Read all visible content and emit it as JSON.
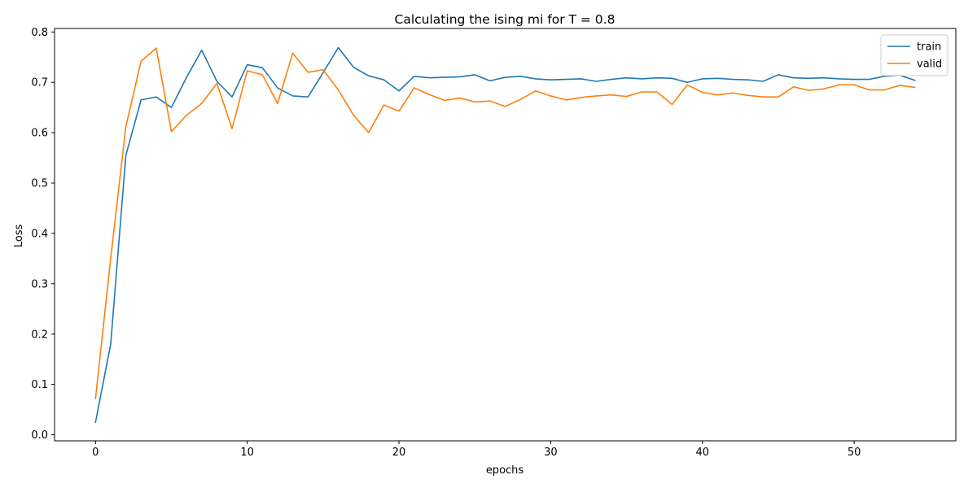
{
  "chart_data": {
    "type": "line",
    "title": "Calculating the ising mi for T = 0.8",
    "xlabel": "epochs",
    "ylabel": "Loss",
    "xlim": [
      -2.7,
      56.7
    ],
    "ylim": [
      -0.012,
      0.807
    ],
    "xticks": [
      0,
      10,
      20,
      30,
      40,
      50
    ],
    "yticks": [
      0.0,
      0.1,
      0.2,
      0.3,
      0.4,
      0.5,
      0.6,
      0.7,
      0.8
    ],
    "ytick_labels": [
      "0.0",
      "0.1",
      "0.2",
      "0.3",
      "0.4",
      "0.5",
      "0.6",
      "0.7",
      "0.8"
    ],
    "legend_position": "upper right",
    "grid": false,
    "x": [
      0,
      1,
      2,
      3,
      4,
      5,
      6,
      7,
      8,
      9,
      10,
      11,
      12,
      13,
      14,
      15,
      16,
      17,
      18,
      19,
      20,
      21,
      22,
      23,
      24,
      25,
      26,
      27,
      28,
      29,
      30,
      31,
      32,
      33,
      34,
      35,
      36,
      37,
      38,
      39,
      40,
      41,
      42,
      43,
      44,
      45,
      46,
      47,
      48,
      49,
      50,
      51,
      52,
      53,
      54
    ],
    "series": [
      {
        "name": "train",
        "color": "#1f77b4",
        "values": [
          0.025,
          0.18,
          0.555,
          0.665,
          0.671,
          0.65,
          0.71,
          0.764,
          0.702,
          0.671,
          0.735,
          0.729,
          0.689,
          0.673,
          0.671,
          0.719,
          0.769,
          0.73,
          0.713,
          0.705,
          0.683,
          0.712,
          0.709,
          0.71,
          0.711,
          0.715,
          0.703,
          0.71,
          0.712,
          0.707,
          0.705,
          0.706,
          0.707,
          0.702,
          0.706,
          0.709,
          0.707,
          0.709,
          0.708,
          0.7,
          0.707,
          0.708,
          0.706,
          0.705,
          0.702,
          0.715,
          0.709,
          0.708,
          0.709,
          0.707,
          0.706,
          0.706,
          0.712,
          0.714,
          0.704
        ]
      },
      {
        "name": "valid",
        "color": "#ff7f0e",
        "values": [
          0.072,
          0.35,
          0.612,
          0.742,
          0.768,
          0.602,
          0.635,
          0.658,
          0.698,
          0.608,
          0.723,
          0.715,
          0.658,
          0.758,
          0.72,
          0.725,
          0.685,
          0.635,
          0.6,
          0.655,
          0.643,
          0.689,
          0.676,
          0.664,
          0.669,
          0.661,
          0.663,
          0.652,
          0.666,
          0.683,
          0.673,
          0.665,
          0.67,
          0.673,
          0.675,
          0.672,
          0.681,
          0.681,
          0.656,
          0.695,
          0.68,
          0.675,
          0.679,
          0.674,
          0.671,
          0.671,
          0.691,
          0.684,
          0.687,
          0.695,
          0.695,
          0.685,
          0.685,
          0.694,
          0.69
        ]
      }
    ]
  }
}
